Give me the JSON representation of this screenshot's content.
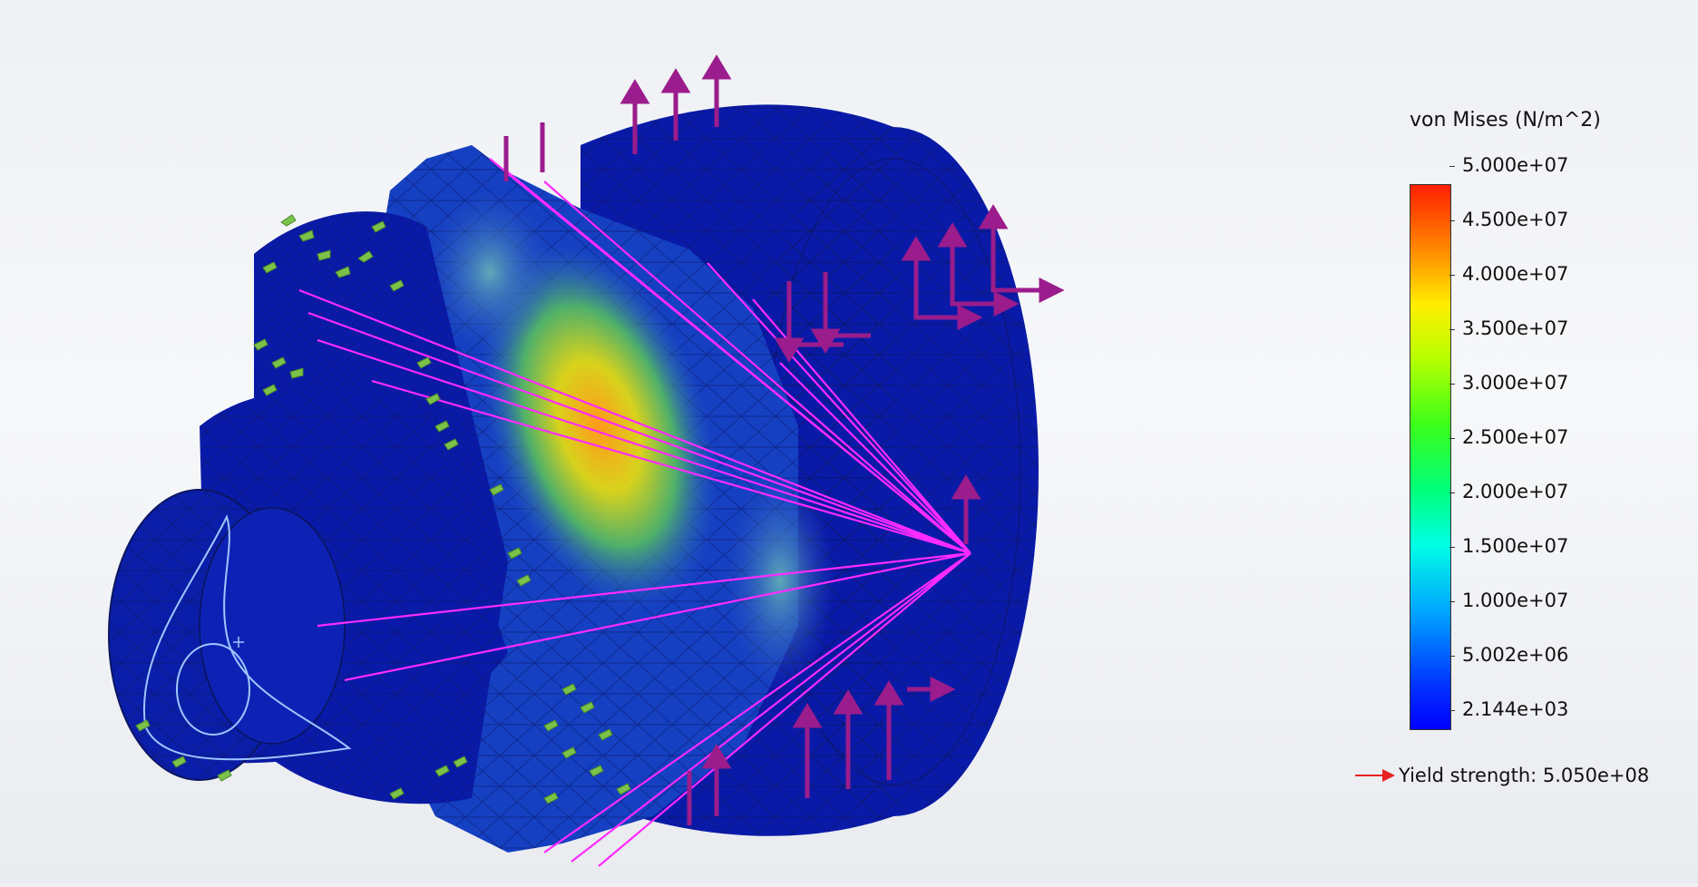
{
  "legend": {
    "title": "von Mises (N/m^2)",
    "ticks": [
      "5.000e+07",
      "4.500e+07",
      "4.000e+07",
      "3.500e+07",
      "3.000e+07",
      "2.500e+07",
      "2.000e+07",
      "1.500e+07",
      "1.000e+07",
      "5.002e+06",
      "2.144e+03"
    ],
    "yield_label": "Yield strength: 5.050e+08"
  },
  "colors": {
    "mesh_base": "#0a1aa8",
    "stress_high": "#ff1f00",
    "connector": "#ff2bff",
    "fixture": "#7bc24a",
    "load_arrow": "#9b1c8c",
    "yield_arrow": "#e52222"
  },
  "icons": [
    "fixture-arrow-icon",
    "load-arrow-icon",
    "yield-arrow-icon"
  ]
}
